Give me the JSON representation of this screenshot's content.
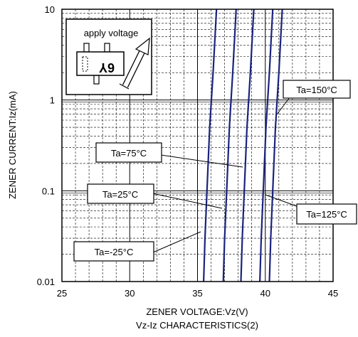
{
  "chart_data": {
    "type": "line",
    "title": "Vz-Iz CHARACTERISTICS(2)",
    "xlabel": "ZENER VOLTAGE:Vz(V)",
    "ylabel": "ZENER CURRENT:Iz(mA)",
    "xlim": [
      25,
      45
    ],
    "ylim": [
      0.01,
      10
    ],
    "yscale": "log",
    "x_ticks": [
      25,
      30,
      35,
      40,
      45
    ],
    "x_tick_labels": [
      "25",
      "30",
      "35",
      "40",
      "45"
    ],
    "y_ticks": [
      0.01,
      0.1,
      1,
      10
    ],
    "y_tick_labels": [
      "0.01",
      "0.1",
      "1",
      "10"
    ],
    "grid": true,
    "line_color": "#1a237e",
    "series": [
      {
        "name": "Ta=-25°C",
        "x": [
          35.45,
          35.55,
          35.7,
          35.9,
          36.15,
          36.4
        ],
        "y": [
          0.01,
          0.03,
          0.1,
          0.5,
          2,
          10
        ]
      },
      {
        "name": "Ta=25°C",
        "x": [
          36.9,
          37.0,
          37.15,
          37.35,
          37.6,
          37.85
        ],
        "y": [
          0.01,
          0.03,
          0.1,
          0.5,
          2,
          10
        ]
      },
      {
        "name": "Ta=75°C",
        "x": [
          38.2,
          38.3,
          38.45,
          38.65,
          38.9,
          39.15
        ],
        "y": [
          0.01,
          0.03,
          0.1,
          0.5,
          2,
          10
        ]
      },
      {
        "name": "Ta=125°C",
        "x": [
          39.6,
          39.7,
          39.85,
          40.05,
          40.3,
          40.55
        ],
        "y": [
          0.01,
          0.03,
          0.1,
          0.5,
          2,
          10
        ]
      },
      {
        "name": "Ta=150°C",
        "x": [
          40.3,
          40.4,
          40.55,
          40.75,
          41.0,
          41.25
        ],
        "y": [
          0.01,
          0.03,
          0.1,
          0.5,
          2,
          10
        ]
      }
    ],
    "annotations": [
      {
        "text": "Ta=150°C",
        "target": {
          "x": 40.8,
          "y": 0.55
        }
      },
      {
        "text": "Ta=75°C",
        "target": {
          "x": 38.4,
          "y": 0.25
        }
      },
      {
        "text": "Ta=25°C",
        "target": {
          "x": 37.15,
          "y": 0.055
        }
      },
      {
        "text": "Ta=125°C",
        "target": {
          "x": 40.0,
          "y": 0.09
        }
      },
      {
        "text": "Ta=-25°C",
        "target": {
          "x": 35.5,
          "y": 0.02
        }
      }
    ],
    "inset": {
      "label": "apply voltage",
      "package_marking": "6Y"
    }
  }
}
